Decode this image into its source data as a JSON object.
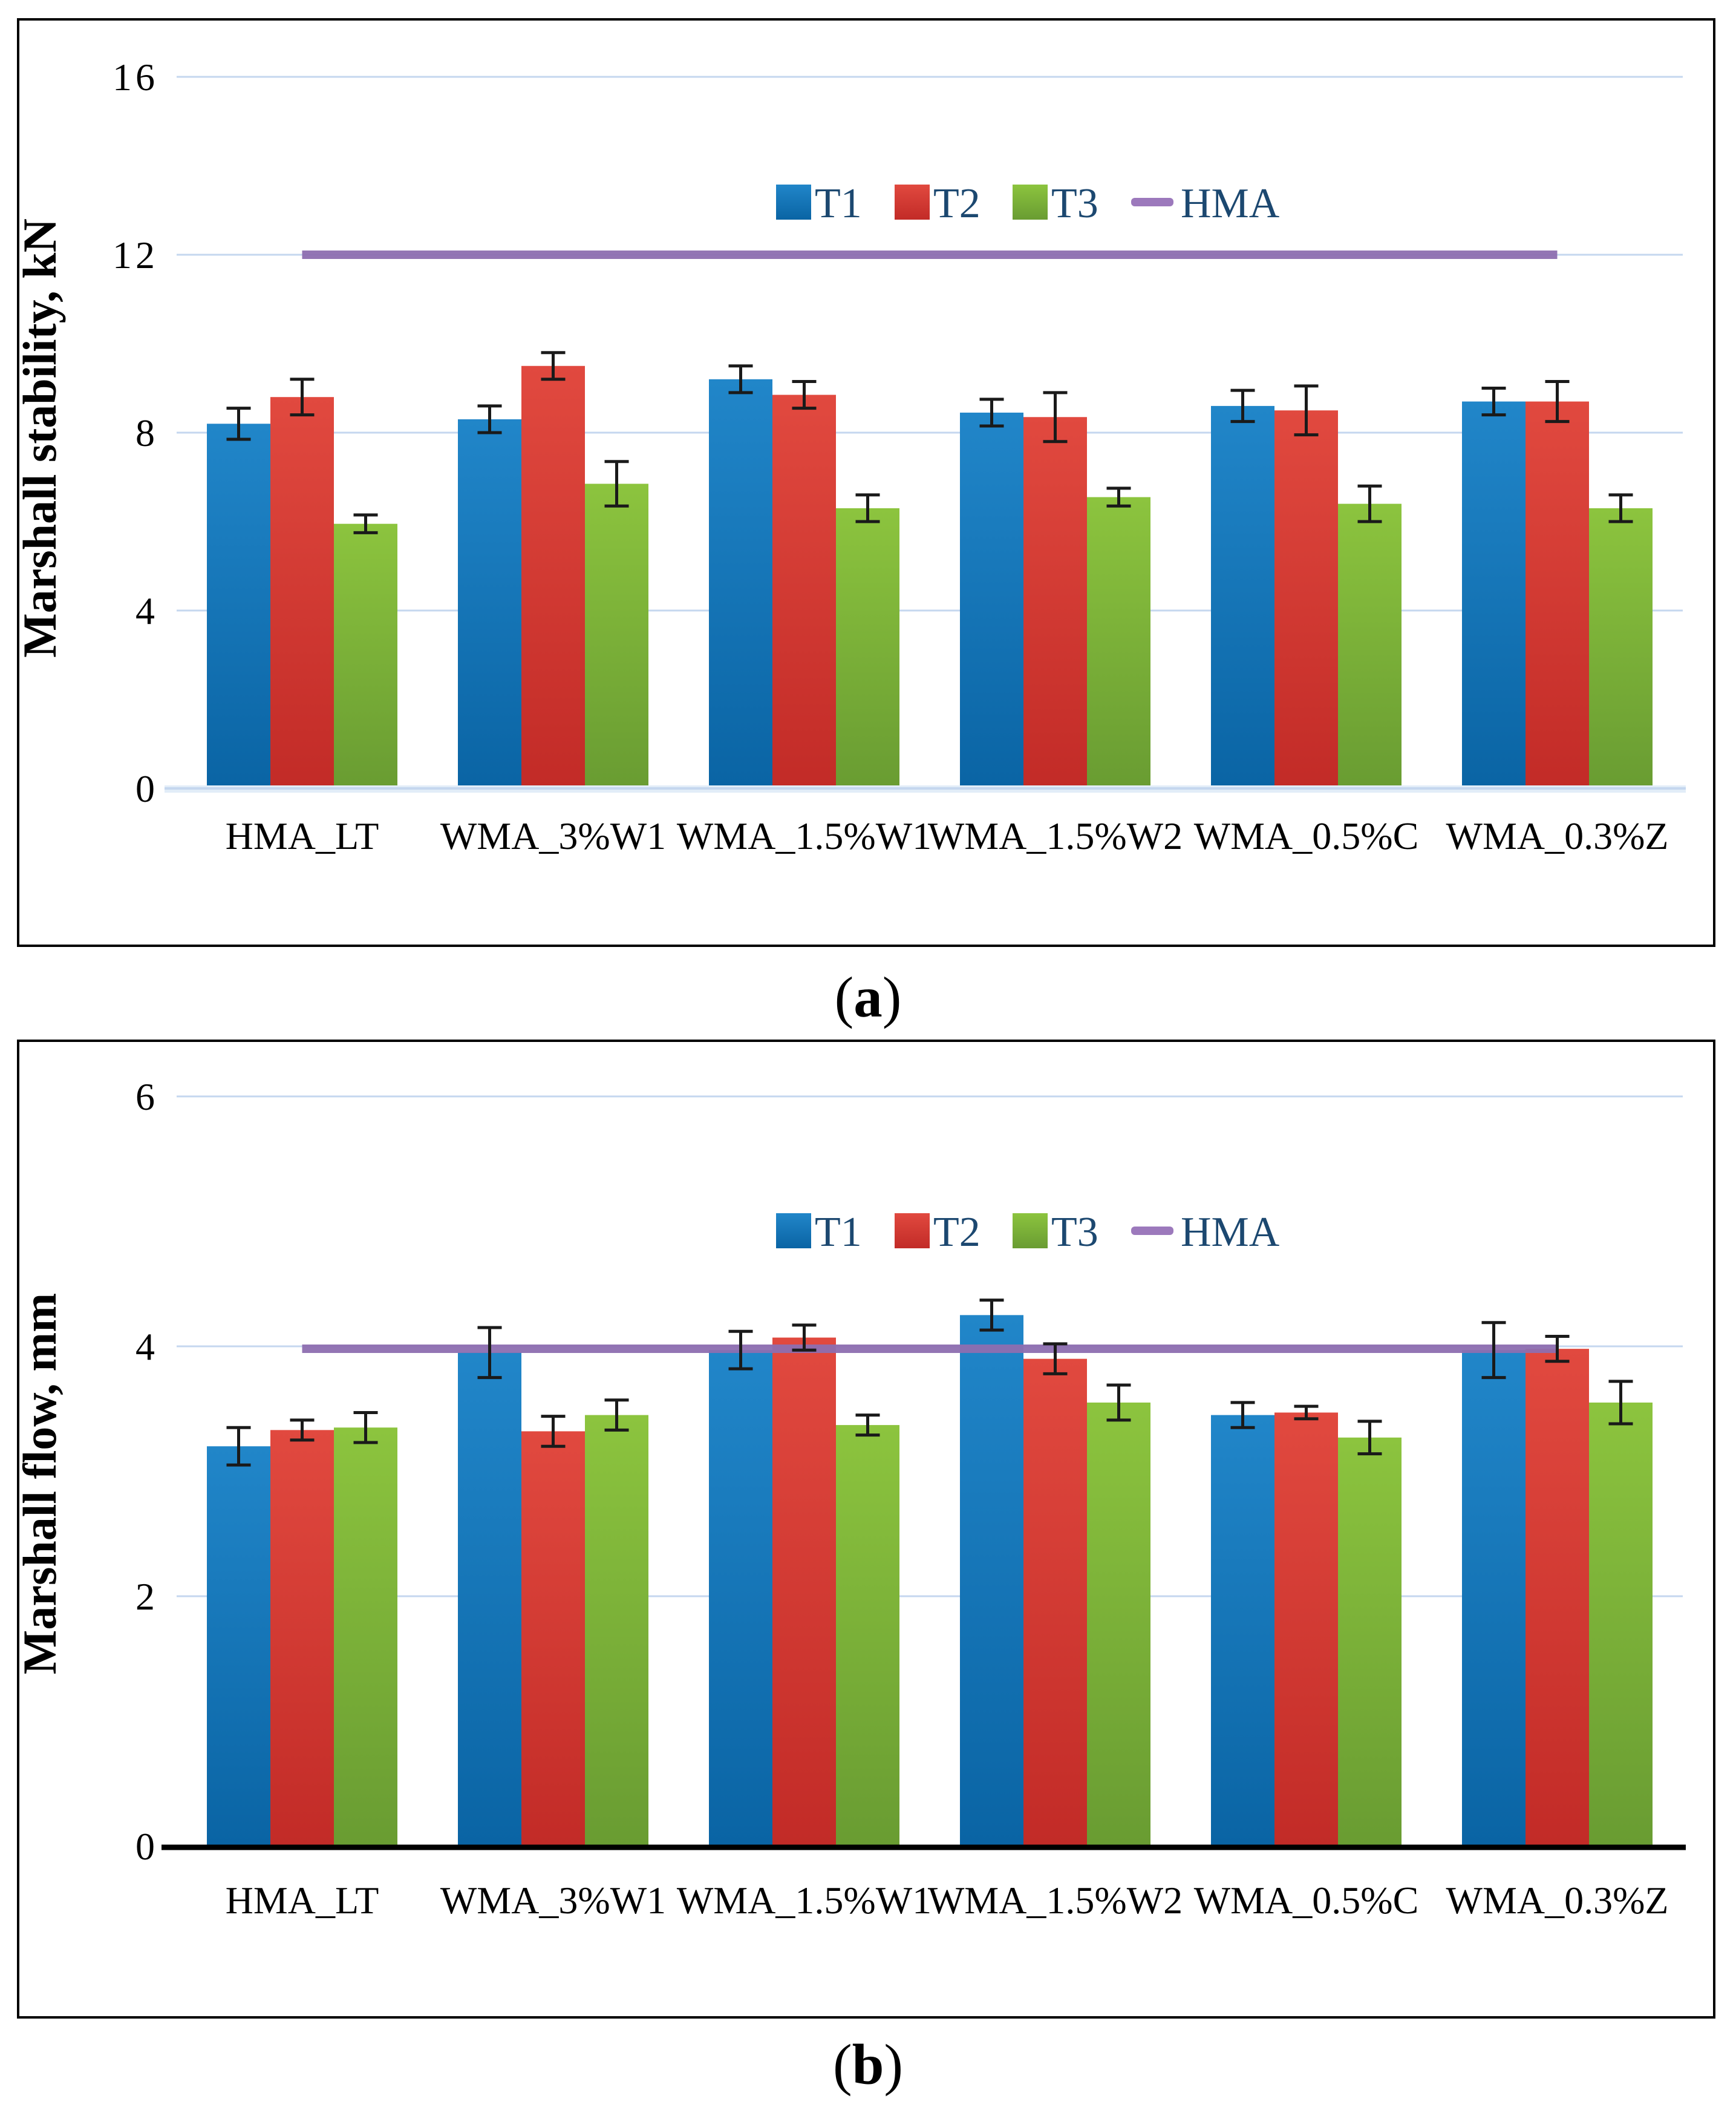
{
  "figure": {
    "captions": {
      "a": {
        "open": "(",
        "letter": "a",
        "close": ")"
      },
      "b": {
        "open": "(",
        "letter": "b",
        "close": ")"
      }
    }
  },
  "colors": {
    "series": {
      "T1": [
        "#2186C9",
        "#0A64A4"
      ],
      "T2": [
        "#E1493F",
        "#C22B27"
      ],
      "T3": [
        "#8CC43E",
        "#699C32"
      ]
    },
    "hma_line": "#8E6EB0",
    "legend_hma_dash": "#9C79BC",
    "legend_text": "#1C4870",
    "gridline": "#C5D7EF",
    "axis_a": "#C5D7EF",
    "axis_a_band": "#E2EDF8",
    "axis_b": "#000000",
    "error_bar": "#1A1A1A",
    "tick_text": "#000000",
    "axis_title_text": "#000000"
  },
  "chart_data": [
    {
      "id": "a",
      "type": "bar",
      "title": "",
      "ylabel": "Marshall stability, kN",
      "xlabel": "",
      "ylim": [
        0,
        16
      ],
      "yticks": [
        0,
        4,
        8,
        12,
        16
      ],
      "grid": true,
      "legend_position": "top-center",
      "legend": [
        "T1",
        "T2",
        "T3",
        "HMA"
      ],
      "categories": [
        "HMA_LT",
        "WMA_3%W1",
        "WMA_1.5%W1",
        "WMA_1.5%W2",
        "WMA_0.5%C",
        "WMA_0.3%Z"
      ],
      "series": [
        {
          "name": "T1",
          "values": [
            8.2,
            8.3,
            9.2,
            8.45,
            8.6,
            8.7
          ],
          "errors": [
            0.35,
            0.3,
            0.3,
            0.3,
            0.35,
            0.3
          ]
        },
        {
          "name": "T2",
          "values": [
            8.8,
            9.5,
            8.85,
            8.35,
            8.5,
            8.7
          ],
          "errors": [
            0.4,
            0.3,
            0.3,
            0.55,
            0.55,
            0.45
          ]
        },
        {
          "name": "T3",
          "values": [
            5.95,
            6.85,
            6.3,
            6.55,
            6.4,
            6.3
          ],
          "errors": [
            0.2,
            0.5,
            0.3,
            0.2,
            0.4,
            0.3
          ]
        }
      ],
      "hma_line": {
        "label": "HMA",
        "value": 12
      }
    },
    {
      "id": "b",
      "type": "bar",
      "title": "",
      "ylabel": "Marshall flow, mm",
      "xlabel": "",
      "ylim": [
        0,
        6
      ],
      "yticks": [
        0,
        2,
        4,
        6
      ],
      "grid": true,
      "legend_position": "top-center",
      "legend": [
        "T1",
        "T2",
        "T3",
        "HMA"
      ],
      "categories": [
        "HMA_LT",
        "WMA_3%W1",
        "WMA_1.5%W1",
        "WMA_1.5%W2",
        "WMA_0.5%C",
        "WMA_0.3%Z"
      ],
      "series": [
        {
          "name": "T1",
          "values": [
            3.2,
            3.95,
            3.97,
            4.25,
            3.45,
            3.97
          ],
          "errors": [
            0.15,
            0.2,
            0.15,
            0.12,
            0.1,
            0.22
          ]
        },
        {
          "name": "T2",
          "values": [
            3.33,
            3.32,
            4.07,
            3.9,
            3.47,
            3.98
          ],
          "errors": [
            0.08,
            0.12,
            0.1,
            0.12,
            0.05,
            0.1
          ]
        },
        {
          "name": "T3",
          "values": [
            3.35,
            3.45,
            3.37,
            3.55,
            3.27,
            3.55
          ],
          "errors": [
            0.12,
            0.12,
            0.08,
            0.14,
            0.13,
            0.17
          ]
        }
      ],
      "hma_line": {
        "label": "HMA",
        "value": 4
      }
    }
  ]
}
